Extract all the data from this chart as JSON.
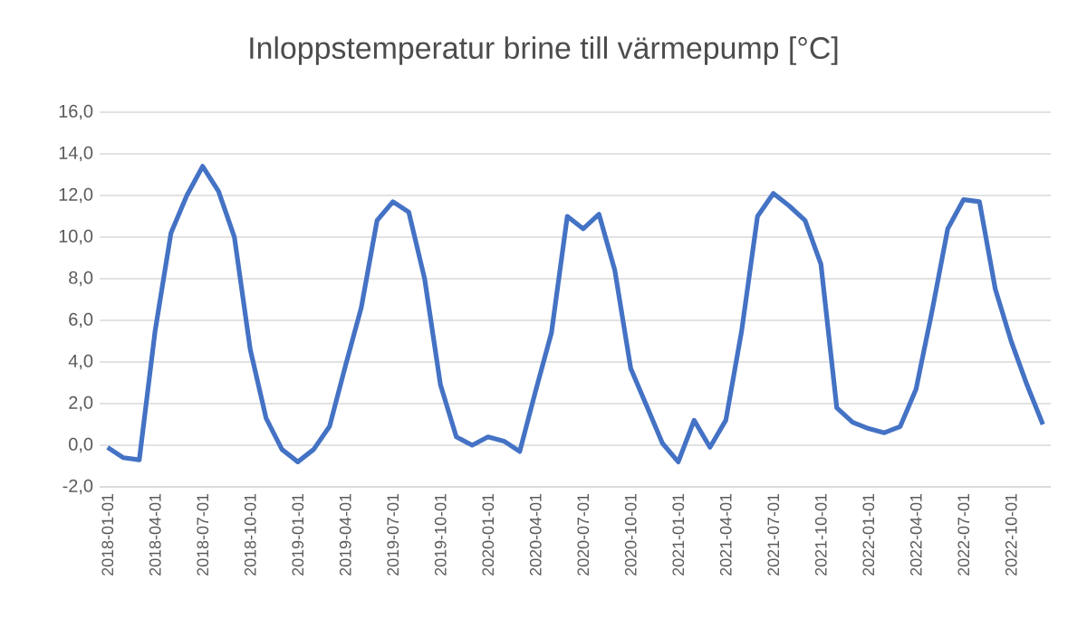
{
  "chart_data": {
    "type": "line",
    "title": "Inloppstemperatur brine till värmepump [°C]",
    "categories": [
      "2018-01-01",
      null,
      null,
      "2018-04-01",
      null,
      null,
      "2018-07-01",
      null,
      null,
      "2018-10-01",
      null,
      null,
      "2019-01-01",
      null,
      null,
      "2019-04-01",
      null,
      null,
      "2019-07-01",
      null,
      null,
      "2019-10-01",
      null,
      null,
      "2020-01-01",
      null,
      null,
      "2020-04-01",
      null,
      null,
      "2020-07-01",
      null,
      null,
      "2020-10-01",
      null,
      null,
      "2021-01-01",
      null,
      null,
      "2021-04-01",
      null,
      null,
      "2021-07-01",
      null,
      null,
      "2021-10-01",
      null,
      null,
      "2022-01-01",
      null,
      null,
      "2022-04-01",
      null,
      null,
      "2022-07-01",
      null,
      null,
      "2022-10-01",
      null,
      null
    ],
    "series": [
      {
        "color": "#4472c4",
        "values": [
          -0.1,
          -0.6,
          -0.7,
          5.5,
          10.2,
          12.0,
          13.4,
          12.2,
          10.0,
          4.6,
          1.3,
          -0.2,
          -0.8,
          -0.2,
          0.9,
          3.8,
          6.6,
          10.8,
          11.7,
          11.2,
          8.0,
          2.9,
          0.4,
          0.0,
          0.4,
          0.2,
          -0.3,
          2.6,
          5.4,
          11.0,
          10.4,
          11.1,
          8.4,
          3.7,
          1.9,
          0.1,
          -0.8,
          1.2,
          -0.1,
          1.2,
          5.5,
          11.0,
          12.1,
          11.5,
          10.8,
          8.7,
          1.8,
          1.1,
          0.8,
          0.6,
          0.9,
          2.7,
          6.4,
          10.4,
          11.8,
          11.7,
          7.5,
          5.0,
          2.9,
          1.0
        ]
      }
    ],
    "ylim": [
      -2,
      16
    ],
    "yticks": [
      {
        "value": -2,
        "label": "-2,0"
      },
      {
        "value": 0,
        "label": "0,0"
      },
      {
        "value": 2,
        "label": "2,0"
      },
      {
        "value": 4,
        "label": "4,0"
      },
      {
        "value": 6,
        "label": "6,0"
      },
      {
        "value": 8,
        "label": "8,0"
      },
      {
        "value": 10,
        "label": "10,0"
      },
      {
        "value": 12,
        "label": "12,0"
      },
      {
        "value": 14,
        "label": "14,0"
      },
      {
        "value": 16,
        "label": "16,0"
      }
    ],
    "grid": "y",
    "legend": false,
    "marker": "none",
    "line_style": "solid"
  }
}
